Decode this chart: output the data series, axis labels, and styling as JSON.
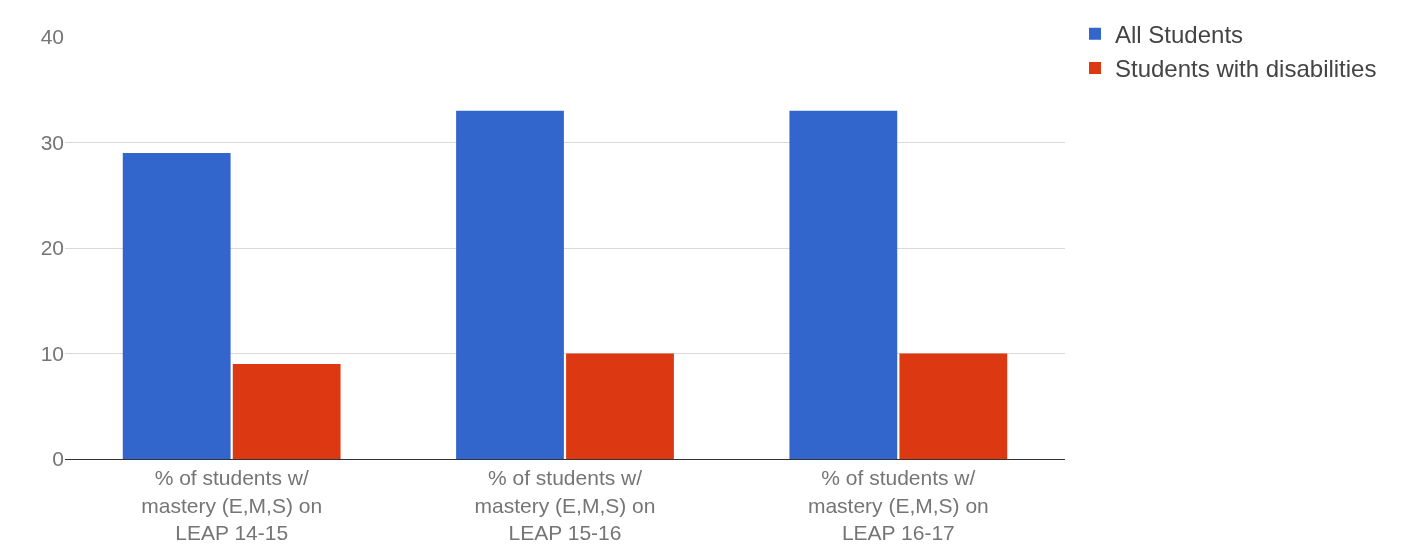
{
  "chart_data": {
    "type": "bar",
    "categories": [
      "% of students w/ mastery (E,M,S) on LEAP 14-15",
      "% of students w/ mastery (E,M,S) on LEAP 15-16",
      "% of students w/ mastery (E,M,S) on LEAP 16-17"
    ],
    "series": [
      {
        "name": "All Students",
        "color": "#3366cc",
        "values": [
          29,
          33,
          33
        ]
      },
      {
        "name": "Students with disabilities",
        "color": "#dc3912",
        "values": [
          9,
          10,
          10
        ]
      }
    ],
    "ylim": [
      0,
      40
    ],
    "yticks": [
      0,
      10,
      20,
      30,
      40
    ],
    "grid": "y",
    "legend": "top right"
  }
}
